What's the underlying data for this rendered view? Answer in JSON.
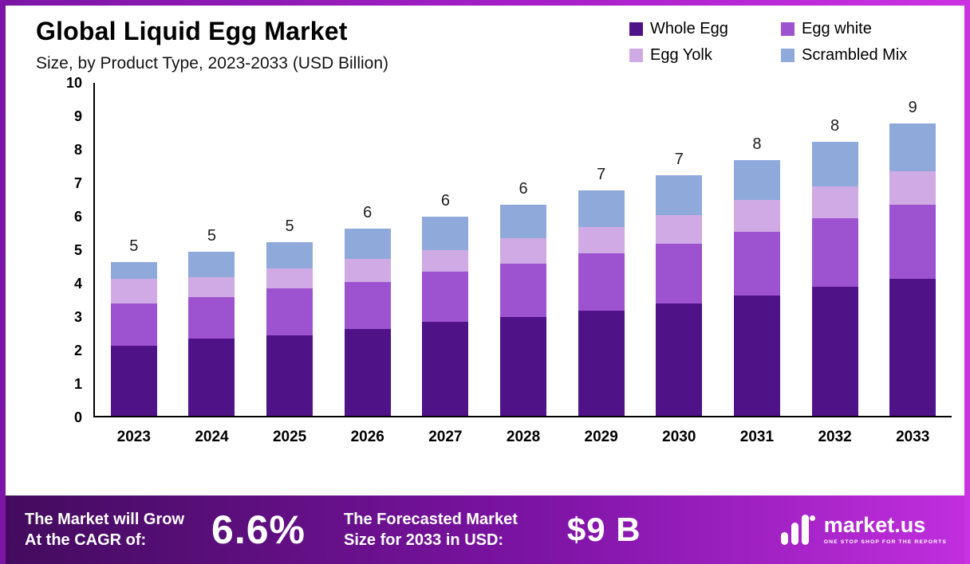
{
  "header": {
    "title": "Global Liquid Egg Market",
    "subtitle": "Size, by Product Type, 2023-2033 (USD Billion)"
  },
  "legend": [
    {
      "label": "Whole Egg",
      "color": "#4f1287"
    },
    {
      "label": "Egg white",
      "color": "#9d53d0"
    },
    {
      "label": "Egg Yolk",
      "color": "#cfaae4"
    },
    {
      "label": "Scrambled Mix",
      "color": "#8fa9db"
    }
  ],
  "chart_data": {
    "type": "bar",
    "stacked": true,
    "title": "Global Liquid Egg Market Size, by Product Type, 2023-2033 (USD Billion)",
    "xlabel": "",
    "ylabel": "",
    "ylim": [
      0,
      10
    ],
    "yticks": [
      0,
      1,
      2,
      3,
      4,
      5,
      6,
      7,
      8,
      9,
      10
    ],
    "grid": false,
    "legend_position": "top-right",
    "categories": [
      "2023",
      "2024",
      "2025",
      "2026",
      "2027",
      "2028",
      "2029",
      "2030",
      "2031",
      "2032",
      "2033"
    ],
    "series": [
      {
        "name": "Whole Egg",
        "color": "#4f1287",
        "values": [
          2.1,
          2.3,
          2.4,
          2.6,
          2.8,
          2.95,
          3.15,
          3.35,
          3.6,
          3.85,
          4.1
        ]
      },
      {
        "name": "Egg white",
        "color": "#9d53d0",
        "values": [
          1.25,
          1.25,
          1.4,
          1.4,
          1.5,
          1.6,
          1.7,
          1.8,
          1.9,
          2.05,
          2.2
        ]
      },
      {
        "name": "Egg Yolk",
        "color": "#cfaae4",
        "values": [
          0.75,
          0.6,
          0.6,
          0.7,
          0.65,
          0.75,
          0.8,
          0.85,
          0.95,
          0.95,
          1.0
        ]
      },
      {
        "name": "Scrambled Mix",
        "color": "#8fa9db",
        "values": [
          0.5,
          0.75,
          0.8,
          0.9,
          1.0,
          1.0,
          1.1,
          1.2,
          1.2,
          1.35,
          1.45
        ]
      }
    ],
    "bar_totals": [
      4.6,
      4.9,
      5.2,
      5.6,
      5.95,
      6.3,
      6.75,
      7.2,
      7.65,
      8.2,
      8.75
    ],
    "totals_labels": [
      "5",
      "5",
      "5",
      "6",
      "6",
      "6",
      "7",
      "7",
      "8",
      "8",
      "9"
    ]
  },
  "footer": {
    "cagr_line1": "The Market will Grow",
    "cagr_line2": "At the CAGR of:",
    "cagr_value": "6.6%",
    "forecast_line1": "The Forecasted Market",
    "forecast_line2": "Size for 2033 in USD:",
    "forecast_value": "$9 B",
    "brand_name": "market.us",
    "brand_tagline": "ONE STOP SHOP FOR THE REPORTS"
  },
  "colors": {
    "frame_gradient_start": "#7b15a5",
    "frame_gradient_end": "#cb32e2",
    "footer_gradient_start": "#430b5e",
    "footer_gradient_end": "#c12ede",
    "axis": "#000000",
    "background": "#ffffff"
  }
}
